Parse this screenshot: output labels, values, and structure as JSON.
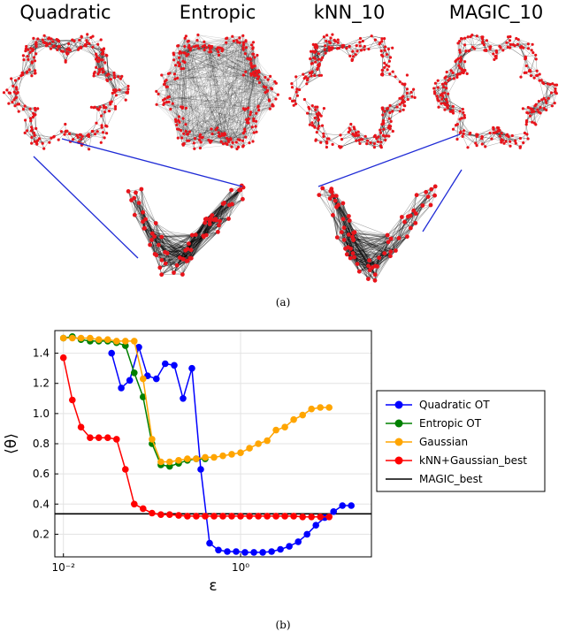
{
  "figure_a": {
    "panel_label": "(a)",
    "titles": [
      "Quadratic",
      "Entropic",
      "kNN_10",
      "MAGIC_10"
    ]
  },
  "figure_b": {
    "panel_label": "(b)"
  },
  "colors": {
    "edge": "#000000",
    "point": "#e8141b",
    "zoom_line": "#1f2bd6"
  },
  "chart_data": [
    {
      "type": "scatter",
      "description": "Four graph constructions on a six-petal flower-shaped point cloud (panel a); two zoomed insets of a petal.",
      "titles": [
        "Quadratic",
        "Entropic",
        "kNN_10",
        "MAGIC_10"
      ]
    },
    {
      "type": "line",
      "xscale": "log",
      "xlabel": "ε",
      "ylabel": "⟨θ⟩",
      "xlim": [
        0.008,
        30
      ],
      "ylim": [
        0.05,
        1.55
      ],
      "xticks": [
        {
          "value": 0.01,
          "label": "10⁻²"
        },
        {
          "value": 1,
          "label": "10⁰"
        }
      ],
      "yticks": [
        0.2,
        0.4,
        0.6,
        0.8,
        1.0,
        1.2,
        1.4
      ],
      "ytick_labels": [
        "0.2",
        "0.4",
        "0.6",
        "0.8",
        "1.0",
        "1.2",
        "1.4"
      ],
      "grid": true,
      "legend_position": "right",
      "series": [
        {
          "name": "Quadratic OT",
          "color": "#0000ff",
          "x": [
            0.035,
            0.045,
            0.056,
            0.071,
            0.089,
            0.112,
            0.141,
            0.178,
            0.224,
            0.282,
            0.355,
            0.447,
            0.562,
            0.708,
            0.891,
            1.122,
            1.413,
            1.778,
            2.239,
            2.818,
            3.548,
            4.467,
            5.623,
            7.079,
            8.913,
            11.22,
            14.13,
            17.78
          ],
          "y": [
            1.4,
            1.17,
            1.22,
            1.44,
            1.25,
            1.23,
            1.33,
            1.32,
            1.1,
            1.3,
            0.63,
            0.14,
            0.095,
            0.085,
            0.085,
            0.08,
            0.08,
            0.08,
            0.085,
            0.1,
            0.12,
            0.15,
            0.2,
            0.26,
            0.31,
            0.35,
            0.39,
            0.39
          ]
        },
        {
          "name": "Entropic OT",
          "color": "#008000",
          "x": [
            0.01,
            0.0126,
            0.0158,
            0.02,
            0.0251,
            0.0316,
            0.0398,
            0.0501,
            0.0631,
            0.0794,
            0.1,
            0.126,
            0.158,
            0.2,
            0.251,
            0.316,
            0.398
          ],
          "y": [
            1.5,
            1.51,
            1.49,
            1.48,
            1.48,
            1.48,
            1.47,
            1.45,
            1.27,
            1.11,
            0.8,
            0.66,
            0.65,
            0.67,
            0.69,
            0.7,
            0.7
          ]
        },
        {
          "name": "Gaussian",
          "color": "#ffa500",
          "x": [
            0.01,
            0.0126,
            0.0158,
            0.02,
            0.0251,
            0.0316,
            0.0398,
            0.0501,
            0.0631,
            0.0794,
            0.1,
            0.126,
            0.158,
            0.2,
            0.251,
            0.316,
            0.398,
            0.501,
            0.631,
            0.794,
            1.0,
            1.259,
            1.585,
            1.995,
            2.512,
            3.162,
            3.981,
            5.012,
            6.31,
            7.943,
            10.0
          ],
          "y": [
            1.5,
            1.5,
            1.5,
            1.5,
            1.49,
            1.49,
            1.48,
            1.48,
            1.48,
            1.23,
            0.83,
            0.68,
            0.68,
            0.69,
            0.7,
            0.7,
            0.71,
            0.71,
            0.72,
            0.73,
            0.74,
            0.77,
            0.8,
            0.82,
            0.89,
            0.91,
            0.96,
            0.99,
            1.03,
            1.04,
            1.04
          ]
        },
        {
          "name": "kNN+Gaussian_best",
          "color": "#ff0000",
          "x": [
            0.01,
            0.0126,
            0.0158,
            0.02,
            0.0251,
            0.0316,
            0.0398,
            0.0501,
            0.0631,
            0.0794,
            0.1,
            0.126,
            0.158,
            0.2,
            0.251,
            0.316,
            0.398,
            0.501,
            0.631,
            0.794,
            1.0,
            1.259,
            1.585,
            1.995,
            2.512,
            3.162,
            3.981,
            5.012,
            6.31,
            7.943,
            10.0
          ],
          "y": [
            1.37,
            1.09,
            0.91,
            0.84,
            0.84,
            0.84,
            0.83,
            0.63,
            0.4,
            0.37,
            0.34,
            0.33,
            0.33,
            0.325,
            0.32,
            0.32,
            0.32,
            0.32,
            0.32,
            0.32,
            0.32,
            0.32,
            0.32,
            0.32,
            0.32,
            0.32,
            0.32,
            0.315,
            0.315,
            0.315,
            0.315
          ]
        }
      ],
      "reference_line": {
        "name": "MAGIC_best",
        "value": 0.335,
        "color": "#000000"
      }
    }
  ]
}
